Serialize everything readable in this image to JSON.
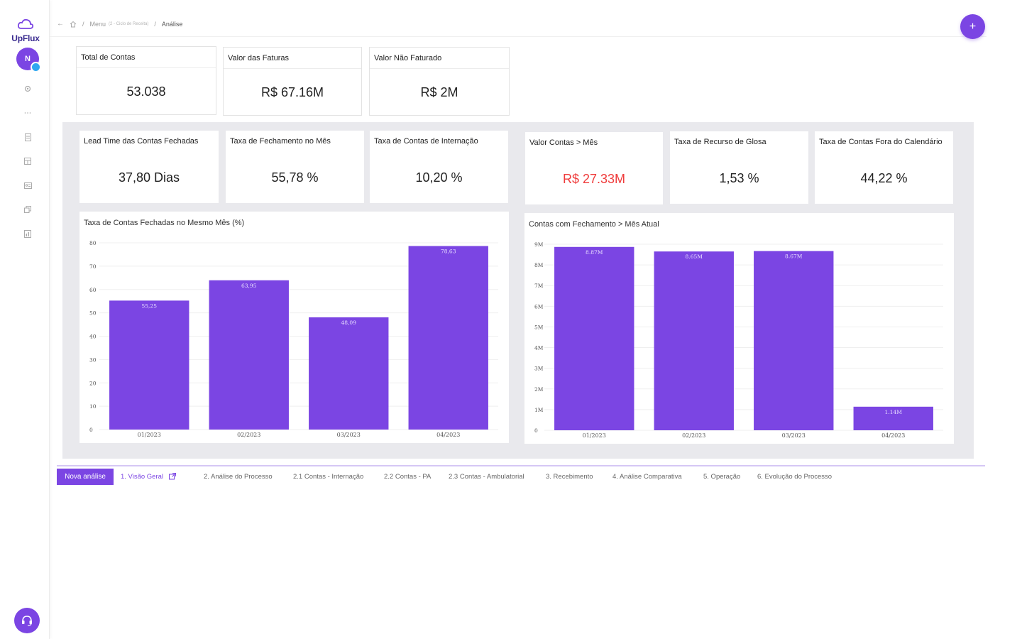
{
  "app": {
    "logo_text": "UpFlux",
    "avatar_initial": "N"
  },
  "sidebar": {
    "icons": [
      "gear-icon",
      "more-icon",
      "document-icon",
      "grid-icon",
      "id-card-icon",
      "copy-icon",
      "report-icon"
    ],
    "support_icon": "headset-icon"
  },
  "header": {
    "breadcrumb": {
      "home_icon": "home-icon",
      "menu": "Menu",
      "menu_detail": "(2 - Ciclo de Receita)",
      "current": "Análise",
      "separator": "/"
    },
    "fab_label": "+"
  },
  "top_cards": [
    {
      "title": "Total de Contas",
      "value": "53.038"
    },
    {
      "title": "Valor das Faturas",
      "value": "R$ 67.16M"
    },
    {
      "title": "Valor Não Faturado",
      "value": "R$ 2M"
    }
  ],
  "kpis": [
    {
      "title": "Lead Time das Contas Fechadas",
      "value": "37,80 Dias",
      "color": "#222222"
    },
    {
      "title": "Taxa de Fechamento no Mês",
      "value": "55,78 %",
      "color": "#222222"
    },
    {
      "title": "Taxa de Contas de Internação",
      "value": "10,20 %",
      "color": "#222222"
    },
    {
      "title": "Valor Contas > Mês",
      "value": "R$ 27.33M",
      "color": "#ef3b3b"
    },
    {
      "title": "Taxa de Recurso de Glosa",
      "value": "1,53 %",
      "color": "#222222"
    },
    {
      "title": "Taxa de Contas Fora do Calendário",
      "value": "44,22 %",
      "color": "#222222"
    }
  ],
  "chart_data": [
    {
      "type": "bar",
      "title": "Taxa de Contas Fechadas no Mesmo Mês (%)",
      "categories": [
        "01/2023",
        "02/2023",
        "03/2023",
        "04/2023"
      ],
      "values": [
        55.25,
        63.95,
        48.09,
        78.63
      ],
      "value_labels": [
        "55,25",
        "63,95",
        "48,09",
        "78,63"
      ],
      "yticks": [
        "0",
        "10",
        "20",
        "30",
        "40",
        "50",
        "60",
        "70",
        "80"
      ],
      "ylim": [
        0,
        80
      ],
      "color": "#7b45e3",
      "grid": true
    },
    {
      "type": "bar",
      "title": "Contas com Fechamento > Mês Atual",
      "categories": [
        "01/2023",
        "02/2023",
        "03/2023",
        "04/2023"
      ],
      "values": [
        8.87,
        8.65,
        8.67,
        1.14
      ],
      "value_labels": [
        "8.87M",
        "8.65M",
        "8.67M",
        "1.14M"
      ],
      "yticks": [
        "0",
        "1M",
        "2M",
        "3M",
        "4M",
        "5M",
        "6M",
        "7M",
        "8M",
        "9M"
      ],
      "ylim": [
        0,
        9
      ],
      "unit": "M",
      "color": "#7b45e3",
      "grid": true
    }
  ],
  "tabs": {
    "new_analysis": "Nova análise",
    "items": [
      "1. Visão Geral",
      "2. Análise do Processo",
      "2.1 Contas - Internação",
      "2.2 Contas - PA",
      "2.3 Contas - Ambulatorial",
      "3. Recebimento",
      "4. Análise Comparativa",
      "5. Operação",
      "6. Evolução do Processo"
    ],
    "active_index": 0,
    "external_icon": "external-link-icon"
  },
  "colors": {
    "accent": "#7b45e3",
    "alert": "#ef3b3b",
    "badge": "#2fa7f0"
  }
}
